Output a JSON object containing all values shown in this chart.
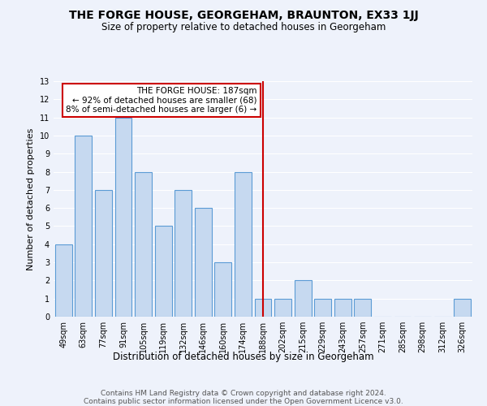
{
  "title": "THE FORGE HOUSE, GEORGEHAM, BRAUNTON, EX33 1JJ",
  "subtitle": "Size of property relative to detached houses in Georgeham",
  "xlabel": "Distribution of detached houses by size in Georgeham",
  "ylabel": "Number of detached properties",
  "categories": [
    "49sqm",
    "63sqm",
    "77sqm",
    "91sqm",
    "105sqm",
    "119sqm",
    "132sqm",
    "146sqm",
    "160sqm",
    "174sqm",
    "188sqm",
    "202sqm",
    "215sqm",
    "229sqm",
    "243sqm",
    "257sqm",
    "271sqm",
    "285sqm",
    "298sqm",
    "312sqm",
    "326sqm"
  ],
  "values": [
    4,
    10,
    7,
    11,
    8,
    5,
    7,
    6,
    3,
    8,
    1,
    1,
    2,
    1,
    1,
    1,
    0,
    0,
    0,
    0,
    1
  ],
  "bar_color": "#c6d9f0",
  "bar_edge_color": "#5b9bd5",
  "marker_index": 10,
  "marker_color": "#cc0000",
  "marker_label": "THE FORGE HOUSE: 187sqm",
  "annotation_line1": "← 92% of detached houses are smaller (68)",
  "annotation_line2": "8% of semi-detached houses are larger (6) →",
  "annotation_box_color": "#cc0000",
  "ylim": [
    0,
    13
  ],
  "yticks": [
    0,
    1,
    2,
    3,
    4,
    5,
    6,
    7,
    8,
    9,
    10,
    11,
    12,
    13
  ],
  "footer_line1": "Contains HM Land Registry data © Crown copyright and database right 2024.",
  "footer_line2": "Contains public sector information licensed under the Open Government Licence v3.0.",
  "bg_color": "#eef2fb",
  "grid_color": "#ffffff",
  "title_fontsize": 10,
  "subtitle_fontsize": 8.5,
  "ylabel_fontsize": 8,
  "xlabel_fontsize": 8.5,
  "tick_fontsize": 7,
  "annotation_fontsize": 7.5,
  "footer_fontsize": 6.5
}
